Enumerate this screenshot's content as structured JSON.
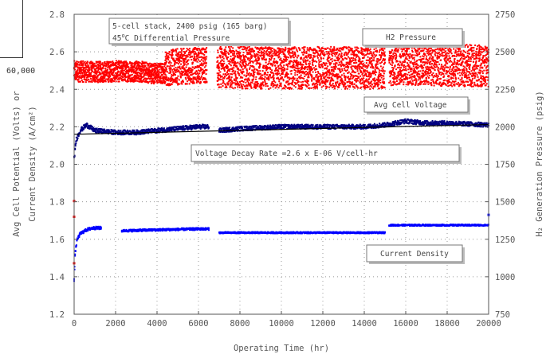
{
  "corner_label": "60,000",
  "chart_data": {
    "type": "scatter",
    "title": "",
    "xlabel": "Operating Time (hr)",
    "ylabel_left_line1": "Avg Cell Potential (Volts) or",
    "ylabel_left_line2": "Current Density (A/cm²)",
    "ylabel_right": "H₂ Generation Pressure (psig)",
    "xlim": [
      0,
      20000
    ],
    "ylim_left": [
      1.2,
      2.8
    ],
    "ylim_right": [
      750,
      2750
    ],
    "x_ticks": [
      0,
      2000,
      4000,
      6000,
      8000,
      10000,
      12000,
      14000,
      16000,
      18000,
      20000
    ],
    "x_tick_labels": [
      "0",
      "2000",
      "4000",
      "6000",
      "8000",
      "10000",
      "12000",
      "14000",
      "16000",
      "18000",
      "20000"
    ],
    "y_left_ticks": [
      1.2,
      1.4,
      1.6,
      1.8,
      2.0,
      2.2,
      2.4,
      2.6,
      2.8
    ],
    "y_left_tick_labels": [
      "1.2",
      "1.4",
      "1.6",
      "1.8",
      "2.0",
      "2.2",
      "2.4",
      "2.6",
      "2.8"
    ],
    "y_right_ticks": [
      750,
      1000,
      1250,
      1500,
      1750,
      2000,
      2250,
      2500,
      2750
    ],
    "y_right_tick_labels": [
      "750",
      "1000",
      "1250",
      "1500",
      "1750",
      "2000",
      "2250",
      "2500",
      "2750"
    ],
    "grid": true,
    "annotations": {
      "conditions_line1": "5-cell stack, 2400 psig (165 barg)",
      "conditions_line2_temp": "45",
      "conditions_line2_deg": "o",
      "conditions_line2_rest": "C  Differential Pressure",
      "h2_pressure": "H2 Pressure",
      "avg_cell_voltage": "Avg Cell Voltage",
      "decay_rate": "Voltage Decay Rate =2.6 x E-06 V/cell-hr",
      "current_density": "Current Density"
    },
    "series": [
      {
        "name": "H2 Pressure",
        "axis": "right",
        "color": "#ff0000",
        "segments": [
          {
            "x": [
              0,
              1000,
              2000,
              3000,
              4000,
              4400
            ],
            "y": [
              2370,
              2365,
              2370,
              2370,
              2355,
              2360
            ],
            "spread": 70
          },
          {
            "x": [
              4400,
              5000,
              6000,
              6400
            ],
            "y": [
              2390,
              2400,
              2410,
              2410
            ],
            "spread": 120
          },
          {
            "x": [
              6900,
              8000,
              10000,
              12000,
              14000,
              15000
            ],
            "y": [
              2400,
              2395,
              2390,
              2395,
              2390,
              2395
            ],
            "spread": 140
          },
          {
            "x": [
              15200,
              16000,
              18000,
              20000
            ],
            "y": [
              2415,
              2420,
              2410,
              2405
            ],
            "spread": 140
          }
        ],
        "outliers": [
          {
            "x": 0,
            "y": 1090
          },
          {
            "x": 0,
            "y": 1400
          },
          {
            "x": 0,
            "y": 1505
          }
        ]
      },
      {
        "name": "Avg Cell Voltage",
        "axis": "left",
        "color": "#000080",
        "segments": [
          {
            "x": [
              0,
              100,
              300,
              600,
              1000,
              2000,
              3000,
              4000,
              5000,
              6000,
              6500
            ],
            "y": [
              2.03,
              2.13,
              2.18,
              2.21,
              2.18,
              2.17,
              2.17,
              2.18,
              2.19,
              2.2,
              2.2
            ],
            "spread": 0.012
          },
          {
            "x": [
              7000,
              8000,
              10000,
              12000,
              14000,
              15000
            ],
            "y": [
              2.18,
              2.19,
              2.2,
              2.2,
              2.2,
              2.21
            ],
            "spread": 0.012
          },
          {
            "x": [
              15000,
              16000,
              17000,
              18000,
              20000
            ],
            "y": [
              2.21,
              2.23,
              2.22,
              2.22,
              2.21
            ],
            "spread": 0.012
          }
        ]
      },
      {
        "name": "Current Density",
        "axis": "left",
        "color": "#0000ff",
        "segments": [
          {
            "x": [
              0,
              50,
              150,
              300,
              600,
              900,
              1300
            ],
            "y": [
              1.38,
              1.53,
              1.6,
              1.63,
              1.65,
              1.66,
              1.66
            ],
            "spread": 0.008
          },
          {
            "x": [
              2300,
              4000,
              6000,
              6500
            ],
            "y": [
              1.645,
              1.65,
              1.655,
              1.655
            ],
            "spread": 0.006
          },
          {
            "x": [
              7000,
              10000,
              14000,
              15000
            ],
            "y": [
              1.635,
              1.635,
              1.635,
              1.635
            ],
            "spread": 0.004
          },
          {
            "x": [
              15200,
              18000,
              20000
            ],
            "y": [
              1.675,
              1.675,
              1.675
            ],
            "spread": 0.004
          }
        ],
        "outliers": [
          {
            "x": 20000,
            "y": 1.73
          }
        ]
      },
      {
        "name": "Voltage Decay Rate",
        "axis": "left",
        "color": "#000000",
        "type": "line",
        "x": [
          0,
          20000
        ],
        "y": [
          2.16,
          2.212
        ]
      }
    ]
  }
}
